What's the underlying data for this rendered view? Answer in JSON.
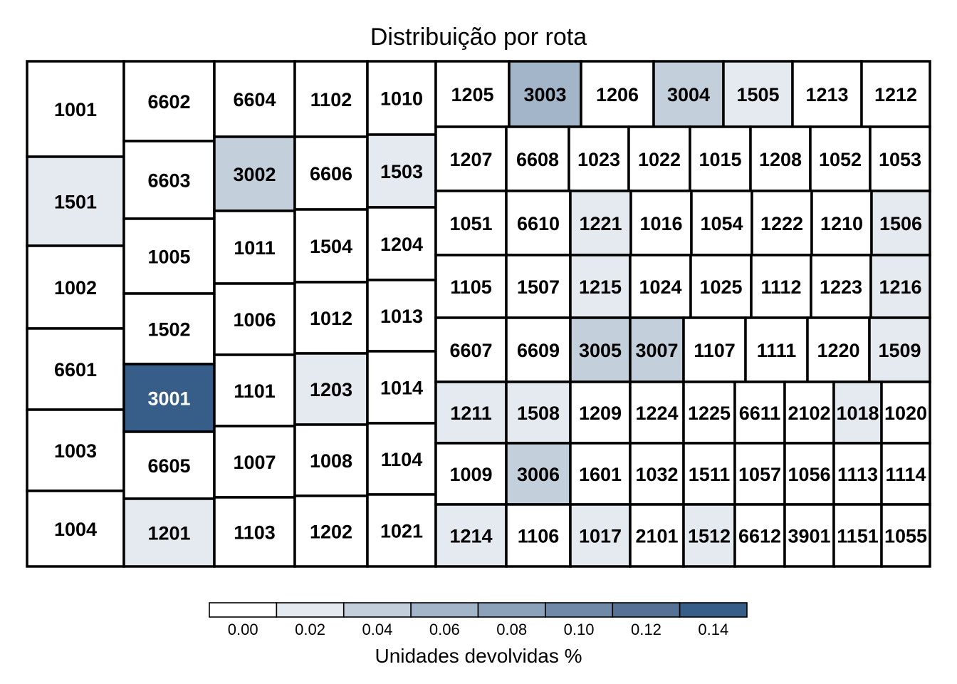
{
  "chart_data": {
    "type": "heatmap",
    "subtype": "treemap",
    "title": "Distribuição por rota",
    "color_scale": {
      "title": "Unidades devolvidas %",
      "ticks": [
        "0.00",
        "0.02",
        "0.04",
        "0.06",
        "0.08",
        "0.10",
        "0.12",
        "0.14"
      ],
      "range": [
        0.0,
        0.15
      ],
      "colors": [
        "#ffffff",
        "#e5eaf0",
        "#c3cfdb",
        "#a3b6c9",
        "#8ca2bb",
        "#7089a8",
        "#557296",
        "#365e88"
      ]
    },
    "routes": [
      {
        "route": "1001",
        "value": 0.018
      },
      {
        "route": "1501",
        "value": 0.022
      },
      {
        "route": "1002",
        "value": 0.016
      },
      {
        "route": "6601",
        "value": 0.002
      },
      {
        "route": "1003",
        "value": 0.016
      },
      {
        "route": "1004",
        "value": 0.014
      },
      {
        "route": "6602",
        "value": 0.005
      },
      {
        "route": "6603",
        "value": 0.003
      },
      {
        "route": "1005",
        "value": 0.012
      },
      {
        "route": "1502",
        "value": 0.018
      },
      {
        "route": "3001",
        "value": 0.148
      },
      {
        "route": "6605",
        "value": 0.005
      },
      {
        "route": "1201",
        "value": 0.022
      },
      {
        "route": "6604",
        "value": 0.004
      },
      {
        "route": "3002",
        "value": 0.047
      },
      {
        "route": "1011",
        "value": 0.015
      },
      {
        "route": "1006",
        "value": 0.012
      },
      {
        "route": "1101",
        "value": 0.009
      },
      {
        "route": "1007",
        "value": 0.015
      },
      {
        "route": "1103",
        "value": 0.013
      },
      {
        "route": "1102",
        "value": 0.017
      },
      {
        "route": "6606",
        "value": 0.006
      },
      {
        "route": "1504",
        "value": 0.018
      },
      {
        "route": "1012",
        "value": 0.014
      },
      {
        "route": "1203",
        "value": 0.021
      },
      {
        "route": "1008",
        "value": 0.013
      },
      {
        "route": "1202",
        "value": 0.012
      },
      {
        "route": "1010",
        "value": 0.011
      },
      {
        "route": "1503",
        "value": 0.023
      },
      {
        "route": "1204",
        "value": 0.013
      },
      {
        "route": "1013",
        "value": 0.015
      },
      {
        "route": "1014",
        "value": 0.011
      },
      {
        "route": "1104",
        "value": 0.013
      },
      {
        "route": "1021",
        "value": 0.011
      },
      {
        "route": "1205",
        "value": 0.018
      },
      {
        "route": "3003",
        "value": 0.062
      },
      {
        "route": "1206",
        "value": 0.013
      },
      {
        "route": "3004",
        "value": 0.048
      },
      {
        "route": "1505",
        "value": 0.028
      },
      {
        "route": "1213",
        "value": 0.01
      },
      {
        "route": "1212",
        "value": 0.014
      },
      {
        "route": "1207",
        "value": 0.014
      },
      {
        "route": "6608",
        "value": 0.005
      },
      {
        "route": "1023",
        "value": 0.01
      },
      {
        "route": "1022",
        "value": 0.011
      },
      {
        "route": "1015",
        "value": 0.012
      },
      {
        "route": "1208",
        "value": 0.014
      },
      {
        "route": "1052",
        "value": 0.012
      },
      {
        "route": "1053",
        "value": 0.015
      },
      {
        "route": "1051",
        "value": 0.014
      },
      {
        "route": "6610",
        "value": 0.004
      },
      {
        "route": "1221",
        "value": 0.019
      },
      {
        "route": "1016",
        "value": 0.012
      },
      {
        "route": "1054",
        "value": 0.013
      },
      {
        "route": "1222",
        "value": 0.018
      },
      {
        "route": "1210",
        "value": 0.015
      },
      {
        "route": "1506",
        "value": 0.024
      },
      {
        "route": "1105",
        "value": 0.016
      },
      {
        "route": "1507",
        "value": 0.018
      },
      {
        "route": "1215",
        "value": 0.019
      },
      {
        "route": "1024",
        "value": 0.012
      },
      {
        "route": "1025",
        "value": 0.012
      },
      {
        "route": "1112",
        "value": 0.013
      },
      {
        "route": "1223",
        "value": 0.014
      },
      {
        "route": "1216",
        "value": 0.022
      },
      {
        "route": "6607",
        "value": 0.004
      },
      {
        "route": "6609",
        "value": 0.005
      },
      {
        "route": "3005",
        "value": 0.046
      },
      {
        "route": "3007",
        "value": 0.054
      },
      {
        "route": "1107",
        "value": 0.012
      },
      {
        "route": "1111",
        "value": 0.012
      },
      {
        "route": "1220",
        "value": 0.014
      },
      {
        "route": "1509",
        "value": 0.022
      },
      {
        "route": "1211",
        "value": 0.02
      },
      {
        "route": "1508",
        "value": 0.023
      },
      {
        "route": "1209",
        "value": 0.016
      },
      {
        "route": "1224",
        "value": 0.016
      },
      {
        "route": "1225",
        "value": 0.016
      },
      {
        "route": "6611",
        "value": 0.003
      },
      {
        "route": "2102",
        "value": 0.01
      },
      {
        "route": "1018",
        "value": 0.026
      },
      {
        "route": "1020",
        "value": 0.013
      },
      {
        "route": "1009",
        "value": 0.014
      },
      {
        "route": "3006",
        "value": 0.047
      },
      {
        "route": "1601",
        "value": 0.018
      },
      {
        "route": "1032",
        "value": 0.012
      },
      {
        "route": "1511",
        "value": 0.017
      },
      {
        "route": "1057",
        "value": 0.018
      },
      {
        "route": "1056",
        "value": 0.012
      },
      {
        "route": "1113",
        "value": 0.012
      },
      {
        "route": "1114",
        "value": 0.013
      },
      {
        "route": "1214",
        "value": 0.019
      },
      {
        "route": "1106",
        "value": 0.012
      },
      {
        "route": "1017",
        "value": 0.021
      },
      {
        "route": "2101",
        "value": 0.006
      },
      {
        "route": "1512",
        "value": 0.024
      },
      {
        "route": "6612",
        "value": 0.002
      },
      {
        "route": "3901",
        "value": 0.01
      },
      {
        "route": "1151",
        "value": 0.01
      },
      {
        "route": "1055",
        "value": 0.012
      }
    ]
  }
}
